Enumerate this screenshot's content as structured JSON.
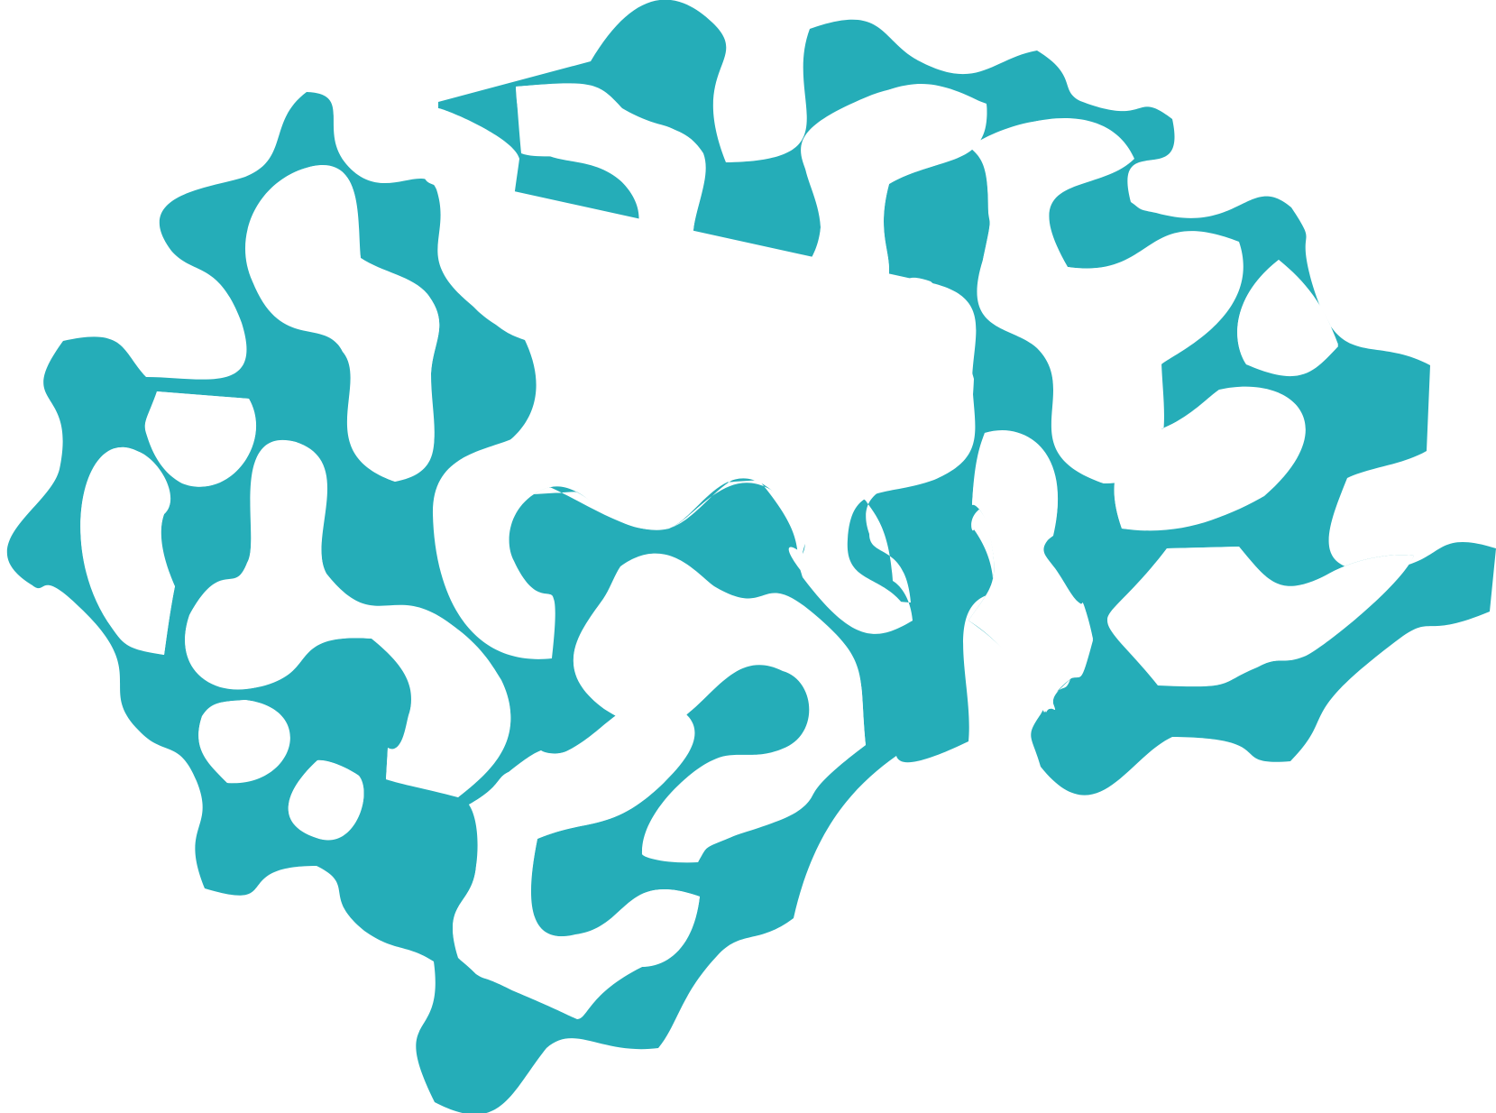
{
  "graphic": {
    "subject": "maze-pattern-blob",
    "fill_color": "#25ADB8",
    "background_color": "#FFFFFF"
  }
}
